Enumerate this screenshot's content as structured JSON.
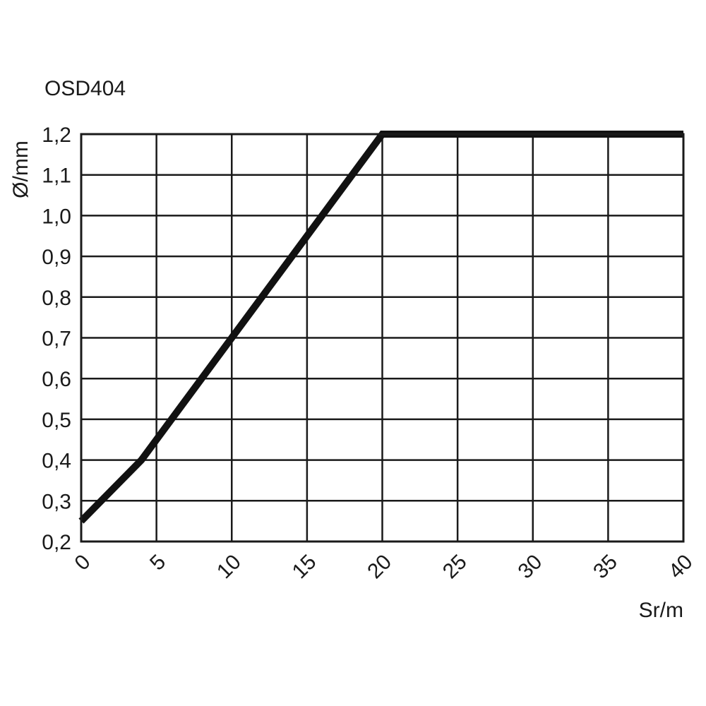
{
  "chart_data": {
    "type": "line",
    "title": "OSD404",
    "xlabel": "Sr/m",
    "ylabel": "Ø/mm",
    "xlim": [
      0,
      40
    ],
    "ylim": [
      0.2,
      1.2
    ],
    "x_ticks": [
      "0",
      "5",
      "10",
      "15",
      "20",
      "25",
      "30",
      "35",
      "40"
    ],
    "y_ticks": [
      "0,2",
      "0,3",
      "0,4",
      "0,5",
      "0,6",
      "0,7",
      "0,8",
      "0,9",
      "1,0",
      "1,1",
      "1,2"
    ],
    "grid": true,
    "series": [
      {
        "x": [
          0,
          4,
          20,
          40
        ],
        "y": [
          0.25,
          0.4,
          1.2,
          1.2
        ]
      }
    ]
  }
}
